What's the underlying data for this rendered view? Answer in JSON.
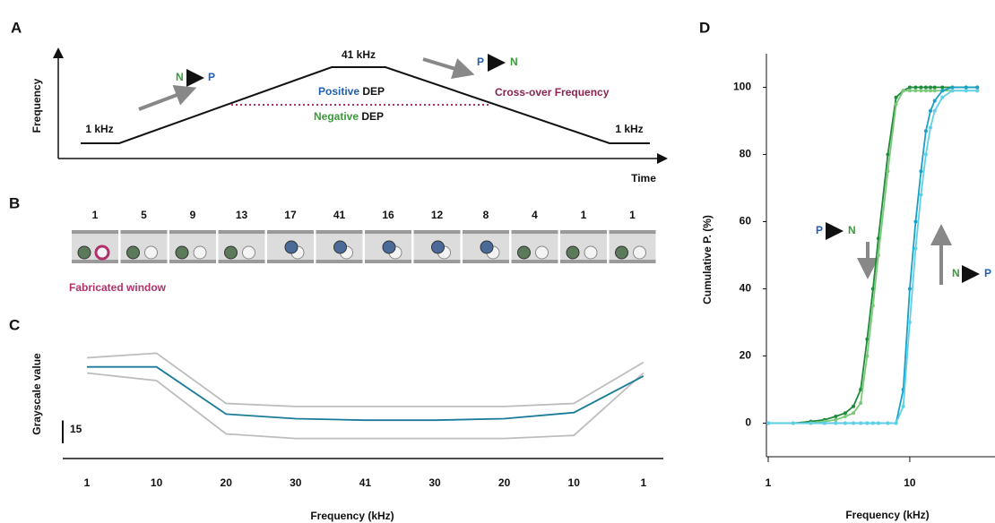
{
  "panel_a": {
    "letter": "A",
    "frequency_axis": "Frequency",
    "time_axis": "Time",
    "start": "1 kHz",
    "peak": "41 kHz",
    "end": "1 kHz",
    "rise": {
      "from": "N",
      "to": "P"
    },
    "fall": {
      "from": "P",
      "to": "N"
    },
    "positive": "Positive",
    "dep_upper": "DEP",
    "negative": "Negative",
    "dep_lower": "DEP",
    "crossover": "Cross-over Frequency"
  },
  "panel_b": {
    "letter": "B",
    "frames": [
      "1",
      "5",
      "9",
      "13",
      "17",
      "41",
      "16",
      "12",
      "8",
      "4",
      "1",
      "1"
    ],
    "window_label": "Fabricated window"
  },
  "chart_data": [
    {
      "type": "line",
      "letter": "C",
      "ylabel": "Grayscale value",
      "xlabel": "Frequency (kHz)",
      "scale_bar": 15,
      "categories": [
        "1",
        "10",
        "20",
        "30",
        "41",
        "30",
        "20",
        "10",
        "1"
      ],
      "ylim": [
        0,
        80
      ],
      "series": [
        {
          "color": "#bdbdbd",
          "values": [
            65,
            68,
            35,
            33,
            33,
            33,
            33,
            35,
            62
          ]
        },
        {
          "color": "#bdbdbd",
          "values": [
            55,
            50,
            15,
            12,
            12,
            12,
            12,
            14,
            55
          ]
        },
        {
          "color": "#1a7a9a",
          "values": [
            59,
            59,
            28,
            25,
            24,
            24,
            25,
            29,
            53
          ]
        }
      ]
    },
    {
      "type": "line",
      "letter": "D",
      "ylabel": "Cumulative P. (%)",
      "xlabel": "Frequency (kHz)",
      "log_x": true,
      "xlim": [
        1,
        40
      ],
      "xticks": [
        1,
        10
      ],
      "ylim": [
        -10,
        110
      ],
      "yticks": [
        0,
        20,
        40,
        60,
        80,
        100
      ],
      "annotations": [
        {
          "from": "P",
          "to": "N"
        },
        {
          "from": "N",
          "to": "P"
        }
      ],
      "x": [
        1,
        1.5,
        2,
        2.5,
        3,
        3.5,
        4,
        4.5,
        5,
        5.5,
        6,
        7,
        8,
        9,
        10,
        11,
        12,
        13,
        14,
        15,
        17,
        20,
        25,
        30
      ],
      "series": [
        {
          "color": "#1e8a3c",
          "values": [
            0,
            0,
            0.5,
            1,
            2,
            3,
            5,
            10,
            25,
            40,
            55,
            80,
            97,
            99,
            100,
            100,
            100,
            100,
            100,
            100,
            100,
            100,
            100,
            100
          ]
        },
        {
          "color": "#7dc97a",
          "values": [
            0,
            0,
            0,
            0.5,
            1,
            2,
            3,
            6,
            20,
            35,
            50,
            75,
            95,
            99,
            99,
            99,
            99,
            99,
            99,
            99,
            99,
            99,
            99,
            99
          ]
        },
        {
          "color": "#1aa0c8",
          "values": [
            0,
            0,
            0,
            0,
            0,
            0,
            0,
            0,
            0,
            0,
            0,
            0,
            0,
            10,
            40,
            60,
            75,
            87,
            93,
            96,
            99,
            100,
            100,
            100
          ]
        },
        {
          "color": "#5fd0e8",
          "values": [
            0,
            0,
            0,
            0,
            0,
            0,
            0,
            0,
            0,
            0,
            0,
            0,
            0,
            5,
            30,
            52,
            68,
            80,
            88,
            93,
            97,
            99,
            99,
            99
          ]
        }
      ]
    }
  ]
}
